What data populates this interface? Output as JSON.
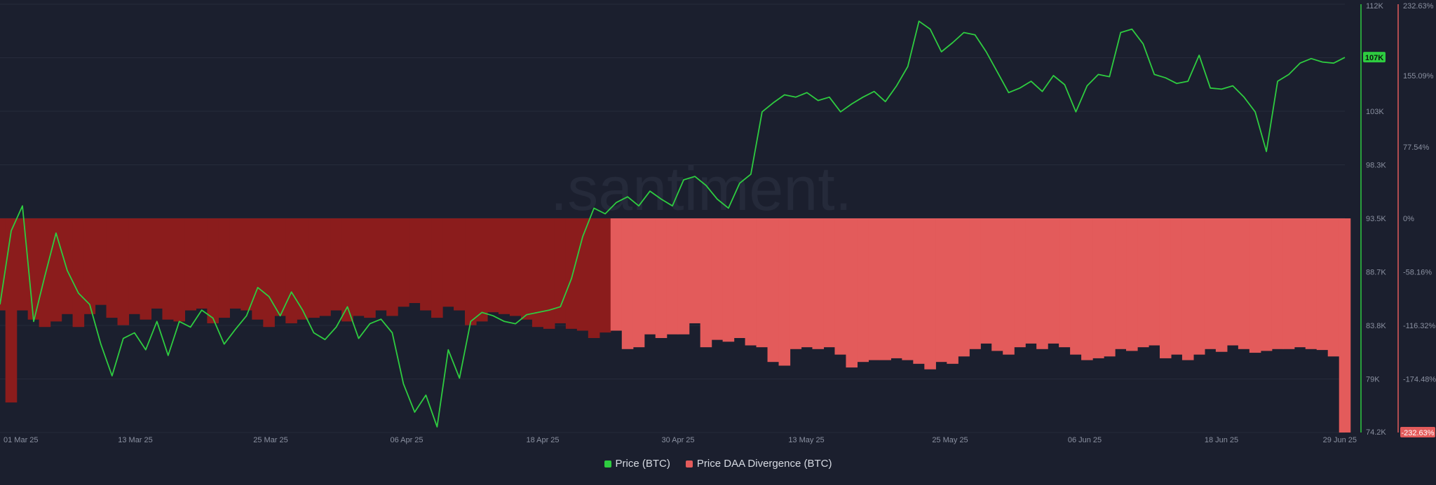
{
  "colors": {
    "background": "#1b1f2e",
    "price_line": "#2ecc40",
    "divergence_dark": "#8b1c1c",
    "divergence_light": "#e35b5b",
    "watermark": "#252a3a",
    "axis_text": "#8a90a0",
    "grid": "#262b3b"
  },
  "watermark": ".santiment.",
  "legend": {
    "price": "Price (BTC)",
    "divergence": "Price DAA Divergence (BTC)"
  },
  "chart_data": {
    "type": "bar",
    "x_ticks": [
      "01 Mar 25",
      "13 Mar 25",
      "25 Mar 25",
      "06 Apr 25",
      "18 Apr 25",
      "30 Apr 25",
      "13 May 25",
      "25 May 25",
      "06 Jun 25",
      "18 Jun 25",
      "29 Jun 25"
    ],
    "x_range": [
      "2025-03-01",
      "2025-06-29"
    ],
    "price_axis": {
      "ticks": [
        "112K",
        "107K",
        "103K",
        "98.3K",
        "93.5K",
        "88.7K",
        "83.8K",
        "79K",
        "74.2K"
      ],
      "ylim": [
        74200,
        112000
      ],
      "current_label": "107K"
    },
    "divergence_axis": {
      "ticks": [
        "232.63%",
        "155.09%",
        "77.54%",
        "0%",
        "-58.16%",
        "-116.32%",
        "-174.48%",
        "-232.63%"
      ],
      "ylim": [
        -232.63,
        232.63
      ],
      "current_label": "-232.63%"
    },
    "series": [
      {
        "name": "Price (BTC)",
        "kind": "line",
        "points": [
          [
            "2025-03-01",
            85500
          ],
          [
            "2025-03-02",
            92000
          ],
          [
            "2025-03-03",
            94200
          ],
          [
            "2025-03-04",
            84000
          ],
          [
            "2025-03-05",
            88000
          ],
          [
            "2025-03-06",
            91800
          ],
          [
            "2025-03-07",
            88500
          ],
          [
            "2025-03-08",
            86500
          ],
          [
            "2025-03-09",
            85500
          ],
          [
            "2025-03-10",
            82000
          ],
          [
            "2025-03-11",
            79200
          ],
          [
            "2025-03-12",
            82500
          ],
          [
            "2025-03-13",
            83000
          ],
          [
            "2025-03-14",
            81500
          ],
          [
            "2025-03-15",
            84000
          ],
          [
            "2025-03-16",
            81000
          ],
          [
            "2025-03-17",
            84000
          ],
          [
            "2025-03-18",
            83500
          ],
          [
            "2025-03-19",
            85000
          ],
          [
            "2025-03-20",
            84300
          ],
          [
            "2025-03-21",
            82000
          ],
          [
            "2025-03-22",
            83300
          ],
          [
            "2025-03-23",
            84500
          ],
          [
            "2025-03-24",
            87000
          ],
          [
            "2025-03-25",
            86200
          ],
          [
            "2025-03-26",
            84500
          ],
          [
            "2025-03-27",
            86600
          ],
          [
            "2025-03-28",
            85000
          ],
          [
            "2025-03-29",
            83000
          ],
          [
            "2025-03-30",
            82400
          ],
          [
            "2025-03-31",
            83500
          ],
          [
            "2025-04-01",
            85300
          ],
          [
            "2025-04-02",
            82500
          ],
          [
            "2025-04-03",
            83800
          ],
          [
            "2025-04-04",
            84200
          ],
          [
            "2025-04-05",
            83000
          ],
          [
            "2025-04-06",
            78500
          ],
          [
            "2025-04-07",
            76000
          ],
          [
            "2025-04-08",
            77500
          ],
          [
            "2025-04-09",
            74700
          ],
          [
            "2025-04-10",
            81500
          ],
          [
            "2025-04-11",
            79000
          ],
          [
            "2025-04-12",
            84000
          ],
          [
            "2025-04-13",
            84800
          ],
          [
            "2025-04-14",
            84500
          ],
          [
            "2025-04-15",
            84000
          ],
          [
            "2025-04-16",
            83800
          ],
          [
            "2025-04-17",
            84600
          ],
          [
            "2025-04-18",
            84800
          ],
          [
            "2025-04-19",
            85000
          ],
          [
            "2025-04-20",
            85300
          ],
          [
            "2025-04-21",
            87800
          ],
          [
            "2025-04-22",
            91500
          ],
          [
            "2025-04-23",
            94000
          ],
          [
            "2025-04-24",
            93500
          ],
          [
            "2025-04-25",
            94500
          ],
          [
            "2025-04-26",
            95000
          ],
          [
            "2025-04-27",
            94200
          ],
          [
            "2025-04-28",
            95500
          ],
          [
            "2025-04-29",
            94800
          ],
          [
            "2025-04-30",
            94200
          ],
          [
            "2025-05-01",
            96500
          ],
          [
            "2025-05-02",
            96800
          ],
          [
            "2025-05-03",
            96000
          ],
          [
            "2025-05-04",
            94800
          ],
          [
            "2025-05-05",
            94000
          ],
          [
            "2025-05-06",
            96200
          ],
          [
            "2025-05-07",
            97000
          ],
          [
            "2025-05-08",
            102500
          ],
          [
            "2025-05-09",
            103300
          ],
          [
            "2025-05-10",
            104000
          ],
          [
            "2025-05-11",
            103800
          ],
          [
            "2025-05-12",
            104200
          ],
          [
            "2025-05-13",
            103500
          ],
          [
            "2025-05-14",
            103800
          ],
          [
            "2025-05-15",
            102500
          ],
          [
            "2025-05-16",
            103200
          ],
          [
            "2025-05-17",
            103800
          ],
          [
            "2025-05-18",
            104300
          ],
          [
            "2025-05-19",
            103400
          ],
          [
            "2025-05-20",
            104800
          ],
          [
            "2025-05-21",
            106500
          ],
          [
            "2025-05-22",
            110500
          ],
          [
            "2025-05-23",
            109800
          ],
          [
            "2025-05-24",
            107800
          ],
          [
            "2025-05-25",
            108600
          ],
          [
            "2025-05-26",
            109500
          ],
          [
            "2025-05-27",
            109300
          ],
          [
            "2025-05-28",
            107800
          ],
          [
            "2025-05-29",
            106000
          ],
          [
            "2025-05-30",
            104200
          ],
          [
            "2025-05-31",
            104600
          ],
          [
            "2025-06-01",
            105200
          ],
          [
            "2025-06-02",
            104300
          ],
          [
            "2025-06-03",
            105700
          ],
          [
            "2025-06-04",
            104900
          ],
          [
            "2025-06-05",
            102500
          ],
          [
            "2025-06-06",
            104800
          ],
          [
            "2025-06-07",
            105800
          ],
          [
            "2025-06-08",
            105600
          ],
          [
            "2025-06-09",
            109500
          ],
          [
            "2025-06-10",
            109800
          ],
          [
            "2025-06-11",
            108500
          ],
          [
            "2025-06-12",
            105800
          ],
          [
            "2025-06-13",
            105500
          ],
          [
            "2025-06-14",
            105000
          ],
          [
            "2025-06-15",
            105200
          ],
          [
            "2025-06-16",
            107500
          ],
          [
            "2025-06-17",
            104600
          ],
          [
            "2025-06-18",
            104500
          ],
          [
            "2025-06-19",
            104800
          ],
          [
            "2025-06-20",
            103800
          ],
          [
            "2025-06-21",
            102500
          ],
          [
            "2025-06-22",
            99000
          ],
          [
            "2025-06-23",
            105200
          ],
          [
            "2025-06-24",
            105800
          ],
          [
            "2025-06-25",
            106800
          ],
          [
            "2025-06-26",
            107200
          ],
          [
            "2025-06-27",
            106900
          ],
          [
            "2025-06-28",
            106800
          ],
          [
            "2025-06-29",
            107300
          ]
        ]
      },
      {
        "name": "Price DAA Divergence (BTC)",
        "kind": "bar",
        "points": [
          [
            "2025-03-01",
            -100
          ],
          [
            "2025-03-02",
            -200
          ],
          [
            "2025-03-03",
            -100
          ],
          [
            "2025-03-04",
            -110
          ],
          [
            "2025-03-05",
            -118
          ],
          [
            "2025-03-06",
            -112
          ],
          [
            "2025-03-07",
            -104
          ],
          [
            "2025-03-08",
            -118
          ],
          [
            "2025-03-09",
            -104
          ],
          [
            "2025-03-10",
            -94
          ],
          [
            "2025-03-11",
            -108
          ],
          [
            "2025-03-12",
            -116
          ],
          [
            "2025-03-13",
            -104
          ],
          [
            "2025-03-14",
            -110
          ],
          [
            "2025-03-15",
            -98
          ],
          [
            "2025-03-16",
            -110
          ],
          [
            "2025-03-17",
            -112
          ],
          [
            "2025-03-18",
            -100
          ],
          [
            "2025-03-19",
            -98
          ],
          [
            "2025-03-20",
            -114
          ],
          [
            "2025-03-21",
            -108
          ],
          [
            "2025-03-22",
            -98
          ],
          [
            "2025-03-23",
            -100
          ],
          [
            "2025-03-24",
            -110
          ],
          [
            "2025-03-25",
            -118
          ],
          [
            "2025-03-26",
            -106
          ],
          [
            "2025-03-27",
            -114
          ],
          [
            "2025-03-28",
            -110
          ],
          [
            "2025-03-29",
            -108
          ],
          [
            "2025-03-30",
            -106
          ],
          [
            "2025-03-31",
            -100
          ],
          [
            "2025-04-01",
            -112
          ],
          [
            "2025-04-02",
            -106
          ],
          [
            "2025-04-03",
            -108
          ],
          [
            "2025-04-04",
            -100
          ],
          [
            "2025-04-05",
            -106
          ],
          [
            "2025-04-06",
            -96
          ],
          [
            "2025-04-07",
            -92
          ],
          [
            "2025-04-08",
            -100
          ],
          [
            "2025-04-09",
            -108
          ],
          [
            "2025-04-10",
            -96
          ],
          [
            "2025-04-11",
            -100
          ],
          [
            "2025-04-12",
            -116
          ],
          [
            "2025-04-13",
            -112
          ],
          [
            "2025-04-14",
            -102
          ],
          [
            "2025-04-15",
            -104
          ],
          [
            "2025-04-16",
            -106
          ],
          [
            "2025-04-17",
            -110
          ],
          [
            "2025-04-18",
            -118
          ],
          [
            "2025-04-19",
            -120
          ],
          [
            "2025-04-20",
            -114
          ],
          [
            "2025-04-21",
            -120
          ],
          [
            "2025-04-22",
            -122
          ],
          [
            "2025-04-23",
            -130
          ],
          [
            "2025-04-24",
            -124
          ],
          [
            "2025-04-25",
            -122
          ],
          [
            "2025-04-26",
            -142
          ],
          [
            "2025-04-27",
            -140
          ],
          [
            "2025-04-28",
            -126
          ],
          [
            "2025-04-29",
            -130
          ],
          [
            "2025-04-30",
            -126
          ],
          [
            "2025-05-01",
            -126
          ],
          [
            "2025-05-02",
            -114
          ],
          [
            "2025-05-03",
            -140
          ],
          [
            "2025-05-04",
            -132
          ],
          [
            "2025-05-05",
            -134
          ],
          [
            "2025-05-06",
            -130
          ],
          [
            "2025-05-07",
            -138
          ],
          [
            "2025-05-08",
            -140
          ],
          [
            "2025-05-09",
            -156
          ],
          [
            "2025-05-10",
            -160
          ],
          [
            "2025-05-11",
            -142
          ],
          [
            "2025-05-12",
            -140
          ],
          [
            "2025-05-13",
            -142
          ],
          [
            "2025-05-14",
            -140
          ],
          [
            "2025-05-15",
            -148
          ],
          [
            "2025-05-16",
            -162
          ],
          [
            "2025-05-17",
            -156
          ],
          [
            "2025-05-18",
            -154
          ],
          [
            "2025-05-19",
            -154
          ],
          [
            "2025-05-20",
            -152
          ],
          [
            "2025-05-21",
            -154
          ],
          [
            "2025-05-22",
            -158
          ],
          [
            "2025-05-23",
            -164
          ],
          [
            "2025-05-24",
            -156
          ],
          [
            "2025-05-25",
            -158
          ],
          [
            "2025-05-26",
            -150
          ],
          [
            "2025-05-27",
            -142
          ],
          [
            "2025-05-28",
            -136
          ],
          [
            "2025-05-29",
            -144
          ],
          [
            "2025-05-30",
            -148
          ],
          [
            "2025-05-31",
            -140
          ],
          [
            "2025-06-01",
            -136
          ],
          [
            "2025-06-02",
            -142
          ],
          [
            "2025-06-03",
            -136
          ],
          [
            "2025-06-04",
            -140
          ],
          [
            "2025-06-05",
            -148
          ],
          [
            "2025-06-06",
            -154
          ],
          [
            "2025-06-07",
            -152
          ],
          [
            "2025-06-08",
            -150
          ],
          [
            "2025-06-09",
            -142
          ],
          [
            "2025-06-10",
            -144
          ],
          [
            "2025-06-11",
            -140
          ],
          [
            "2025-06-12",
            -138
          ],
          [
            "2025-06-13",
            -152
          ],
          [
            "2025-06-14",
            -148
          ],
          [
            "2025-06-15",
            -154
          ],
          [
            "2025-06-16",
            -148
          ],
          [
            "2025-06-17",
            -142
          ],
          [
            "2025-06-18",
            -145
          ],
          [
            "2025-06-19",
            -138
          ],
          [
            "2025-06-20",
            -142
          ],
          [
            "2025-06-21",
            -146
          ],
          [
            "2025-06-22",
            -144
          ],
          [
            "2025-06-23",
            -142
          ],
          [
            "2025-06-24",
            -142
          ],
          [
            "2025-06-25",
            -140
          ],
          [
            "2025-06-26",
            -142
          ],
          [
            "2025-06-27",
            -143
          ],
          [
            "2025-06-28",
            -150
          ],
          [
            "2025-06-29",
            -232.63
          ]
        ],
        "dark_until": "2025-04-24"
      }
    ],
    "grid": true,
    "legend_position": "bottom-center"
  }
}
